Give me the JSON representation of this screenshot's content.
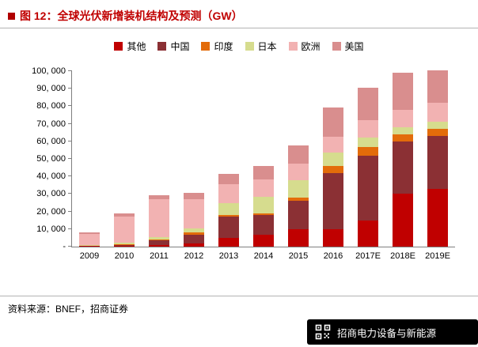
{
  "header": {
    "title": "图 12：全球光伏新增装机结构及预测（GW）",
    "accent_color": "#c00000"
  },
  "chart_data": {
    "type": "bar",
    "stacked": true,
    "title": "全球光伏新增装机结构及预测（GW）",
    "categories": [
      "2009",
      "2010",
      "2011",
      "2012",
      "2013",
      "2014",
      "2015",
      "2016",
      "2017E",
      "2018E",
      "2019E"
    ],
    "series": [
      {
        "name": "其他",
        "color": "#c00000",
        "values": [
          300,
          500,
          1000,
          2000,
          5000,
          7000,
          10000,
          10000,
          15000,
          30000,
          33000
        ]
      },
      {
        "name": "中国",
        "color": "#8b3034",
        "values": [
          300,
          600,
          2500,
          5000,
          12000,
          11000,
          16000,
          32000,
          37000,
          30000,
          30000
        ]
      },
      {
        "name": "印度",
        "color": "#e36c0a",
        "values": [
          0,
          100,
          500,
          1000,
          1000,
          1000,
          2000,
          4000,
          5000,
          4000,
          4000
        ]
      },
      {
        "name": "日本",
        "color": "#d6dc8e",
        "values": [
          500,
          1000,
          1500,
          2500,
          7000,
          9500,
          10000,
          7500,
          5000,
          4000,
          4000
        ]
      },
      {
        "name": "欧洲",
        "color": "#f2b2b2",
        "values": [
          5900,
          14800,
          21500,
          16500,
          10500,
          10000,
          9500,
          9000,
          10000,
          10000,
          11000
        ]
      },
      {
        "name": "美国",
        "color": "#d98e8e",
        "values": [
          1000,
          2000,
          2500,
          3500,
          6000,
          7500,
          10000,
          17000,
          18500,
          21000,
          18500
        ]
      }
    ],
    "totals": [
      8000,
      19000,
      29500,
      30500,
      41500,
      46000,
      57500,
      79500,
      90500,
      99000,
      100500
    ],
    "ylim": [
      0,
      100000
    ],
    "y_tick_step": 10000,
    "y_tick_labels": [
      "-",
      "10, 000",
      "20, 000",
      "30, 000",
      "40, 000",
      "50, 000",
      "60, 000",
      "70, 000",
      "80, 000",
      "90, 000",
      "100, 000"
    ],
    "legend_position": "top",
    "grid": false
  },
  "footer": {
    "source": "资料来源：BNEF，招商证券"
  },
  "banner": {
    "text": "招商电力设备与新能源",
    "icon": "qr-code-icon"
  }
}
